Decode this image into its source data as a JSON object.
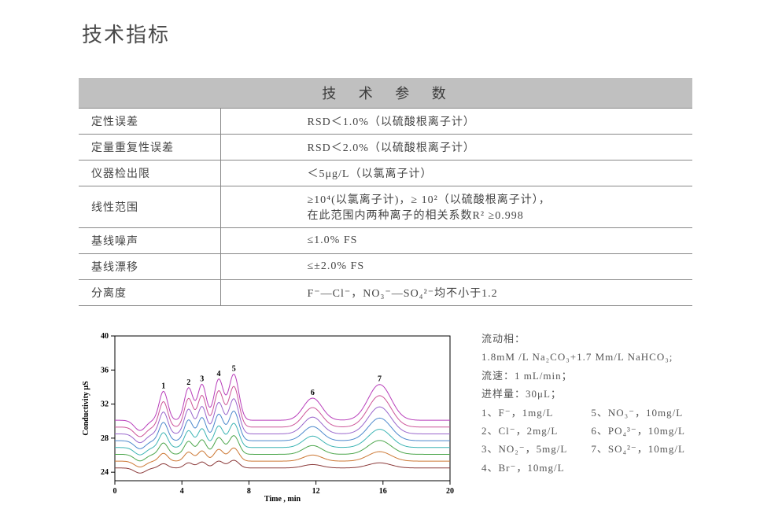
{
  "page": {
    "title": "技术指标"
  },
  "table": {
    "header": "技 术 参 数",
    "rows": [
      {
        "label": "定性误差",
        "value": "RSD＜1.0%（以硫酸根离子计）"
      },
      {
        "label": "定量重复性误差",
        "value": "RSD＜2.0%（以硫酸根离子计）"
      },
      {
        "label": "仪器检出限",
        "value": "＜5μg/L（以氯离子计）"
      },
      {
        "label": "线性范围",
        "value": "≥10⁴(以氯离子计)，≥ 10²（以硫酸根离子计），\n在此范围内两种离子的相关系数R² ≥0.998"
      },
      {
        "label": "基线噪声",
        "value": "≤1.0% FS"
      },
      {
        "label": "基线漂移",
        "value": "≤±2.0% FS"
      },
      {
        "label": "分离度",
        "value": "F⁻—Cl⁻，NO₃⁻—SO₄²⁻均不小于1.2"
      }
    ]
  },
  "chart": {
    "type": "line",
    "x_label": "Time , min",
    "y_label": "Conductivity μS",
    "x_ticks": [
      0,
      4,
      8,
      12,
      16,
      20
    ],
    "y_ticks": [
      24,
      28,
      32,
      36,
      40
    ],
    "xlim": [
      0,
      20
    ],
    "ylim": [
      23,
      40
    ],
    "series_count": 8,
    "baselines": [
      24.5,
      25.3,
      26.1,
      26.9,
      27.7,
      28.5,
      29.3,
      30.1
    ],
    "series_colors": [
      "#8b3a3a",
      "#cc7733",
      "#4ca64c",
      "#3cb4b4",
      "#4c88cc",
      "#9966cc",
      "#cc5599",
      "#b83dba"
    ],
    "dip_time": 1.5,
    "dip_depth": 1.2,
    "peak_times": [
      2.9,
      4.4,
      5.2,
      6.2,
      7.1,
      11.8,
      15.8
    ],
    "peak_heights_top": [
      3.4,
      3.8,
      4.2,
      4.8,
      5.4,
      2.6,
      4.2
    ],
    "peak_heights_bottom": [
      0.5,
      0.6,
      0.7,
      0.8,
      0.9,
      0.4,
      0.6
    ],
    "peak_widths": [
      0.6,
      0.6,
      0.6,
      0.65,
      0.7,
      1.3,
      1.6
    ],
    "peak_labels": [
      "1",
      "2",
      "3",
      "4",
      "5",
      "6",
      "7"
    ],
    "axis_color": "#000000",
    "tick_fontsize": 10,
    "label_fontsize": 10,
    "background_color": "#ffffff"
  },
  "side": {
    "lines": [
      "流动相：",
      "1.8mM /L Na₂CO₃+1.7 Mm/L NaHCO₃;",
      "流速：1 mL/min；",
      "进样量：30μL；"
    ],
    "ions_left": [
      "1、F⁻，1mg/L",
      "2、Cl⁻，2mg/L",
      "3、NO₂⁻，5mg/L",
      "4、Br⁻，10mg/L"
    ],
    "ions_right": [
      "5、NO₃⁻，10mg/L",
      "6、PO₄³⁻，10mg/L",
      "7、SO₄²⁻，10mg/L",
      ""
    ]
  }
}
